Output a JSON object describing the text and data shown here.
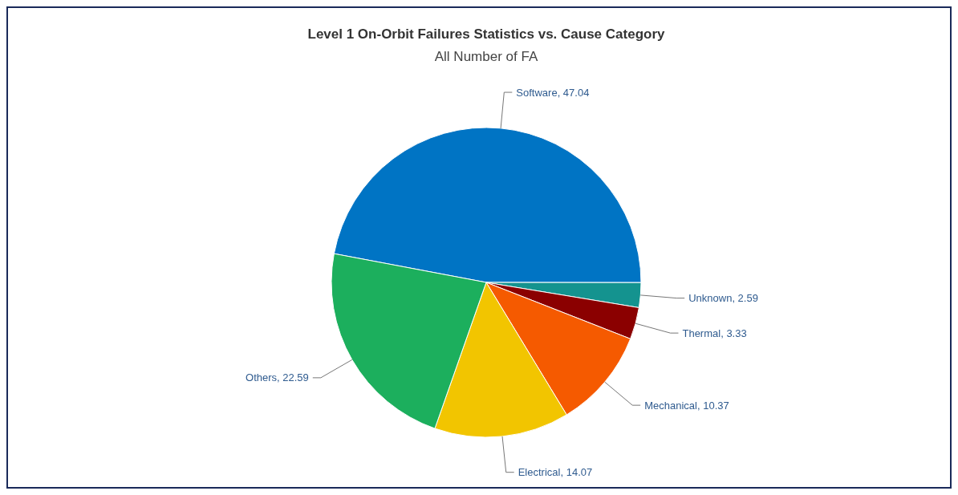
{
  "chart_data": {
    "type": "pie",
    "title": "Level 1 On-Orbit Failures Statistics vs. Cause Category",
    "subtitle": "All Number of FA",
    "categories": [
      "Software",
      "Unknown",
      "Thermal",
      "Mechanical",
      "Electrical",
      "Others"
    ],
    "values": [
      47.04,
      2.59,
      3.33,
      10.37,
      14.07,
      22.59
    ],
    "colors": [
      "#0074c4",
      "#14938f",
      "#8b0000",
      "#f55a00",
      "#f2c500",
      "#1caf5d"
    ],
    "value_labels": [
      ", 47.04",
      ", 2.59",
      ", 3.33",
      ", 10.37",
      ", 14.07",
      ", 22.59"
    ],
    "legend": false
  }
}
